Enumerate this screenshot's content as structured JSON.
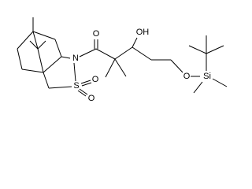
{
  "atoms": [
    "O",
    "OH",
    "N",
    "S",
    "O",
    "O",
    "O",
    "Si"
  ]
}
